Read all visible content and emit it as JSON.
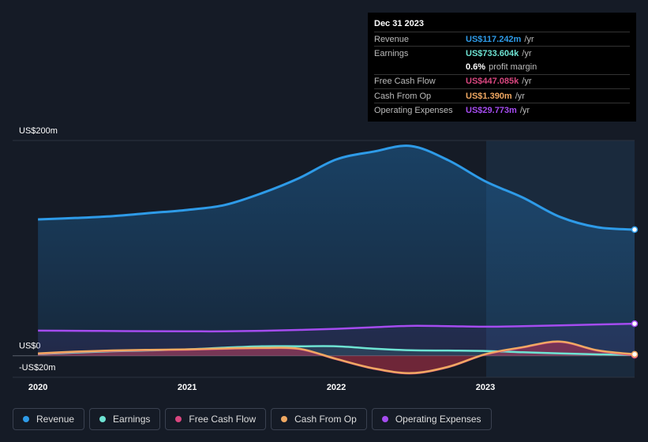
{
  "chart_data": {
    "type": "line",
    "x": [
      2020,
      2020.25,
      2020.5,
      2020.75,
      2021,
      2021.25,
      2021.5,
      2021.75,
      2022,
      2022.25,
      2022.5,
      2022.75,
      2023,
      2023.25,
      2023.5,
      2023.75,
      2024
    ],
    "xlim": [
      2019.83,
      2024
    ],
    "xticks": [
      2020,
      2021,
      2022,
      2023
    ],
    "ylim": [
      -20,
      200
    ],
    "yticks": [
      {
        "value": 200,
        "label": "US$200m"
      },
      {
        "value": 0,
        "label": "US$0"
      },
      {
        "value": -20,
        "label": "-US$20m"
      }
    ],
    "grid": true,
    "series": [
      {
        "name": "Revenue",
        "color": "#2e9be8",
        "values": [
          126.7,
          128,
          129.7,
          132.6,
          135.5,
          140,
          151,
          165,
          182.4,
          189.7,
          194.9,
          181.7,
          162,
          147,
          129,
          119.4,
          117.2
        ]
      },
      {
        "name": "Earnings",
        "color": "#6ee3d3",
        "values": [
          1.5,
          3,
          4.2,
          5,
          5.9,
          7.5,
          8.8,
          8.8,
          8.8,
          6.6,
          5.1,
          4.8,
          4.4,
          3.3,
          2.2,
          1.3,
          0.7
        ]
      },
      {
        "name": "Free Cash Flow",
        "color": "#d9467f",
        "values": [
          1.8,
          3.6,
          4.6,
          5.3,
          5.6,
          6.5,
          7,
          6.3,
          -3.2,
          -12,
          -16.4,
          -10.6,
          1.2,
          7.7,
          12.9,
          4.8,
          0.4
        ]
      },
      {
        "name": "Cash From Op",
        "color": "#f0a862",
        "values": [
          2.2,
          3.8,
          4.9,
          5.5,
          5.9,
          6.8,
          7.3,
          6.6,
          -2.9,
          -11.7,
          -16.1,
          -10.3,
          1.5,
          8,
          13.2,
          5.1,
          1.4
        ]
      },
      {
        "name": "Operating Expenses",
        "color": "#a54cf0",
        "values": [
          23.4,
          23.2,
          23,
          22.8,
          22.7,
          22.7,
          23.2,
          24,
          25,
          26.5,
          27.8,
          27.5,
          27,
          27.5,
          28.2,
          29,
          29.8
        ]
      }
    ]
  },
  "tooltip": {
    "date": "Dec 31 2023",
    "rows": [
      {
        "label": "Revenue",
        "value": "US$117.242m",
        "unit": "/yr"
      },
      {
        "label": "Earnings",
        "value": "US$733.604k",
        "unit": "/yr"
      },
      {
        "label": "Free Cash Flow",
        "value": "US$447.085k",
        "unit": "/yr"
      },
      {
        "label": "Cash From Op",
        "value": "US$1.390m",
        "unit": "/yr"
      },
      {
        "label": "Operating Expenses",
        "value": "US$29.773m",
        "unit": "/yr"
      }
    ],
    "margin": {
      "value": "0.6%",
      "text": "profit margin"
    }
  }
}
